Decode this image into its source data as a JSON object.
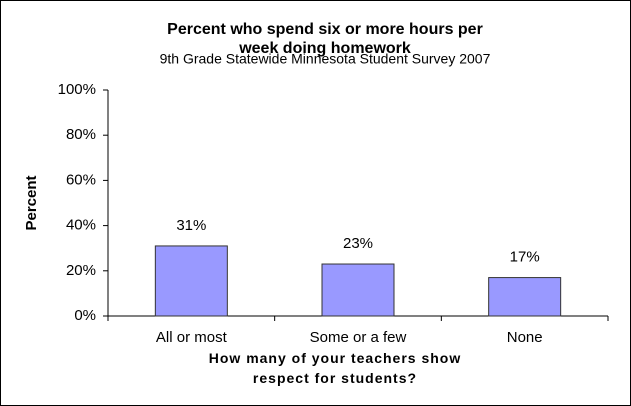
{
  "chart_data": {
    "type": "bar",
    "title": "Percent who spend six or more hours per week doing homework",
    "subtitle": "9th Grade Statewide Minnesota Student Survey 2007",
    "y_label": "Percent",
    "x_label": "How many of your teachers show respect for students?",
    "categories": [
      "All or most",
      "Some or a few",
      "None"
    ],
    "values": [
      31,
      23,
      17
    ],
    "value_labels": [
      "31%",
      "23%",
      "17%"
    ],
    "color": "#9999ff",
    "ylim": [
      0,
      100
    ],
    "yticks": [
      {
        "value": 0,
        "label": "0%"
      },
      {
        "value": 20,
        "label": "20%"
      },
      {
        "value": 40,
        "label": "40%"
      },
      {
        "value": 60,
        "label": "60%"
      },
      {
        "value": 80,
        "label": "80%"
      },
      {
        "value": 100,
        "label": "100%"
      }
    ],
    "grid": false
  }
}
